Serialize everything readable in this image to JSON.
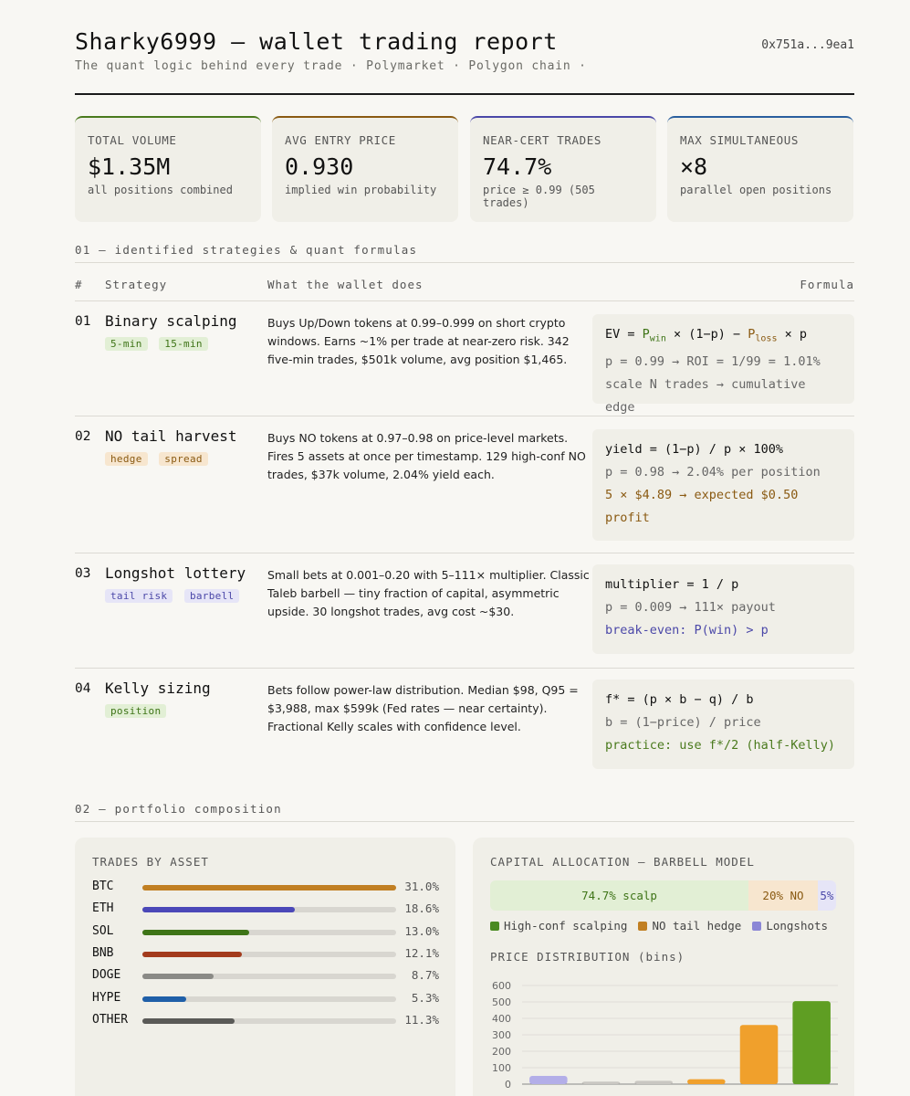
{
  "header": {
    "title": "Sharky6999 — wallet trading report",
    "subtitle": "The quant logic behind every trade · Polymarket · Polygon chain ·",
    "address": "0x751a...9ea1"
  },
  "cards": [
    {
      "label": "TOTAL VOLUME",
      "value": "$1.35M",
      "sub": "all positions combined",
      "color": "#4a7a1d"
    },
    {
      "label": "AVG ENTRY PRICE",
      "value": "0.930",
      "sub": "implied win probability",
      "color": "#8a5a12"
    },
    {
      "label": "NEAR-CERT TRADES",
      "value": "74.7%",
      "sub": "price ≥ 0.99 (505 trades)",
      "color": "#4b48a8"
    },
    {
      "label": "MAX SIMULTANEOUS",
      "value": "×8",
      "sub": "parallel open positions",
      "color": "#2a5f9e"
    }
  ],
  "section1": {
    "title": "01 — identified strategies & quant formulas",
    "col_num": "#",
    "col_strategy": "Strategy",
    "col_desc": "What the wallet does",
    "col_formula": "Formula"
  },
  "strategies": [
    {
      "num": "01",
      "name": "Binary scalping",
      "tags": [
        "5-min",
        "15-min"
      ],
      "desc": "Buys Up/Down tokens at 0.99–0.999 on short crypto windows. Earns ~1% per trade at near-zero risk. 342 five-min trades, $501k volume, avg position $1,465.",
      "formula": {
        "l1_a": "EV = ",
        "l1_pw": "P",
        "l1_pw_sub": "win",
        "l1_b": " × (1−p) − ",
        "l1_pl": "P",
        "l1_pl_sub": "loss",
        "l1_c": " × p",
        "l2": "p = 0.99 → ROI = 1/99 = 1.01%",
        "l3": "scale N trades → cumulative edge"
      }
    },
    {
      "num": "02",
      "name": "NO tail harvest",
      "tags": [
        "hedge",
        "spread"
      ],
      "desc": "Buys NO tokens at 0.97–0.98 on price-level markets. Fires 5 assets at once per timestamp. 129 high-conf NO trades, $37k volume, 2.04% yield each.",
      "formula": {
        "l1": "yield = (1−p) / p × 100%",
        "l2": "p = 0.98 → 2.04% per position",
        "l3": "5 × $4.89 → expected $0.50 profit"
      }
    },
    {
      "num": "03",
      "name": "Longshot lottery",
      "tags": [
        "tail risk",
        "barbell"
      ],
      "desc": "Small bets at 0.001–0.20 with 5–111× multiplier. Classic Taleb barbell — tiny fraction of capital, asymmetric upside. 30 longshot trades, avg cost ~$30.",
      "formula": {
        "l1": "multiplier = 1 / p",
        "l2": "p = 0.009 → 111× payout",
        "l3": "break-even: P(win) > p"
      }
    },
    {
      "num": "04",
      "name": "Kelly sizing",
      "tags": [
        "position"
      ],
      "desc": "Bets follow power-law distribution. Median $98, Q95 = $3,988, max $599k (Fed rates — near certainty). Fractional Kelly scales with confidence level.",
      "formula": {
        "l1": "f* = (p × b − q) / b",
        "l2": "b = (1−price) / price",
        "l3": "practice: use f*/2 (half-Kelly)"
      }
    }
  ],
  "section2": {
    "title": "02 — portfolio composition"
  },
  "assets_panel": {
    "title": "TRADES BY ASSET",
    "assets": [
      {
        "name": "BTC",
        "pct": 31.0,
        "label": "31.0%",
        "color": "#c17f22"
      },
      {
        "name": "ETH",
        "pct": 18.6,
        "label": "18.6%",
        "color": "#4b48b8"
      },
      {
        "name": "SOL",
        "pct": 13.0,
        "label": "13.0%",
        "color": "#3e7417"
      },
      {
        "name": "BNB",
        "pct": 12.1,
        "label": "12.1%",
        "color": "#a33b1c"
      },
      {
        "name": "DOGE",
        "pct": 8.7,
        "label": "8.7%",
        "color": "#8a8a86"
      },
      {
        "name": "HYPE",
        "pct": 5.3,
        "label": "5.3%",
        "color": "#1f5fa8"
      },
      {
        "name": "OTHER",
        "pct": 11.3,
        "label": "11.3%",
        "color": "#5a5a57"
      }
    ]
  },
  "alloc_panel": {
    "title": "CAPITAL ALLOCATION — BARBELL MODEL",
    "segments": [
      {
        "label": "74.7% scalp",
        "pct": 74.7,
        "bg": "#e2efd5",
        "fg": "#3e7417"
      },
      {
        "label": "20% NO",
        "pct": 20,
        "bg": "#f7e6cf",
        "fg": "#8a5a12"
      },
      {
        "label": "5%",
        "pct": 5.3,
        "bg": "#e6e5f7",
        "fg": "#4b48a8"
      }
    ],
    "legend": [
      {
        "label": "High-conf scalping",
        "color": "#4a8a22"
      },
      {
        "label": "NO tail hedge",
        "color": "#c17f22"
      },
      {
        "label": "Longshots",
        "color": "#8b87d6"
      }
    ],
    "dist_title": "PRICE DISTRIBUTION (bins)"
  },
  "chart_data": {
    "type": "bar",
    "title": "PRICE DISTRIBUTION (bins)",
    "categories": [
      "",
      "",
      "",
      "",
      "",
      ""
    ],
    "values": [
      50,
      15,
      20,
      30,
      360,
      505
    ],
    "colors": [
      "#b3aee8",
      "#c9c7c2",
      "#c9c7c2",
      "#f0a02c",
      "#f0a02c",
      "#5f9e23"
    ],
    "yticks": [
      "600",
      "500",
      "400",
      "300",
      "200",
      "100",
      "0"
    ],
    "ylim": [
      0,
      600
    ],
    "grid": true
  }
}
